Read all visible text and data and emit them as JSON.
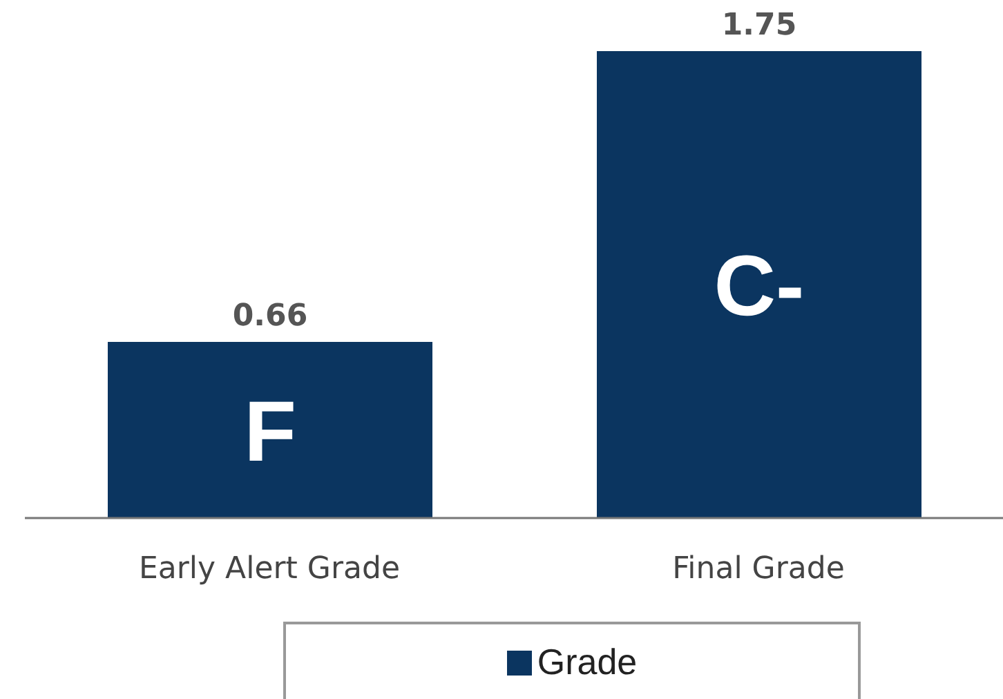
{
  "chart_data": {
    "type": "bar",
    "categories": [
      "Early Alert Grade",
      "Final Grade"
    ],
    "series": [
      {
        "name": "Grade",
        "color": "#0b3560",
        "values": [
          0.66,
          1.75
        ]
      }
    ],
    "data_labels": true,
    "legend": "bottom",
    "annotations": [
      "F",
      "C-"
    ]
  }
}
